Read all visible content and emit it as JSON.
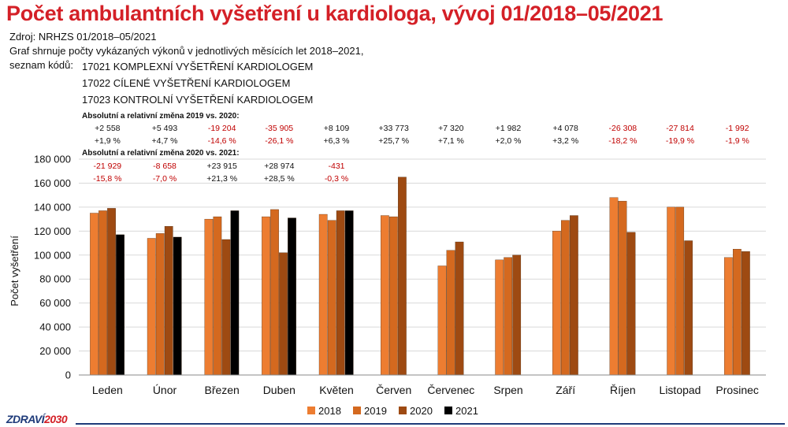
{
  "header": {
    "title": "Počet ambulantních vyšetření u kardiologa, vývoj 01/2018–05/2021",
    "source": "Zdroj: NRHZS 01/2018–05/2021",
    "description": "Graf shrnuje počty vykázaných výkonů v jednotlivých měsících let 2018–2021,",
    "codes_label": "seznam kódů:",
    "codes": [
      "17021 KOMPLEXNÍ VYŠETŘENÍ KARDIOLOGEM",
      "17022 CÍLENÉ VYŠETŘENÍ KARDIOLOGEM",
      "17023 KONTROLNÍ VYŠETŘENÍ KARDIOLOGEM"
    ]
  },
  "logo": {
    "text": "ZDRAVÍ",
    "number": "2030"
  },
  "colors": {
    "title": "#d42027",
    "negative": "#c00000",
    "positive": "#111111",
    "logo_blue": "#1f3b7a"
  },
  "chart_data": {
    "type": "bar",
    "ylabel": "Počet vyšetření",
    "ylim": [
      0,
      180000
    ],
    "yticks": [
      0,
      20000,
      40000,
      60000,
      80000,
      100000,
      120000,
      140000,
      160000,
      180000
    ],
    "ytick_labels": [
      "0",
      "20 000",
      "40 000",
      "60 000",
      "80 000",
      "100 000",
      "120 000",
      "140 000",
      "160 000",
      "180 000"
    ],
    "grid": true,
    "legend": "bottom-center",
    "categories": [
      "Leden",
      "Únor",
      "Březen",
      "Duben",
      "Květen",
      "Červen",
      "Červenec",
      "Srpen",
      "Září",
      "Říjen",
      "Listopad",
      "Prosinec"
    ],
    "series": [
      {
        "name": "2018",
        "color": "#ed7d31",
        "values": [
          135000,
          114000,
          130000,
          132000,
          134000,
          133000,
          91000,
          96000,
          120000,
          148000,
          140000,
          98000
        ]
      },
      {
        "name": "2019",
        "color": "#d4691f",
        "values": [
          137000,
          118000,
          132000,
          138000,
          129000,
          132000,
          104000,
          98000,
          129000,
          145000,
          140000,
          105000
        ]
      },
      {
        "name": "2020",
        "color": "#9e4a12",
        "values": [
          139000,
          124000,
          113000,
          102000,
          137000,
          165000,
          111000,
          100000,
          133000,
          119000,
          112000,
          103000
        ]
      },
      {
        "name": "2021",
        "color": "#000000",
        "values": [
          117000,
          115000,
          137000,
          131000,
          137000,
          null,
          null,
          null,
          null,
          null,
          null,
          null
        ]
      }
    ],
    "annotations": {
      "change_2019_2020": {
        "title": "Absolutní a relativní změna 2019 vs. 2020:",
        "absolute": [
          "+2 558",
          "+5 493",
          "-19 204",
          "-35 905",
          "+8 109",
          "+33 773",
          "+7 320",
          "+1 982",
          "+4 078",
          "-26 308",
          "-27 814",
          "-1 992"
        ],
        "relative": [
          "+1,9 %",
          "+4,7 %",
          "-14,6 %",
          "-26,1 %",
          "+6,3 %",
          "+25,7 %",
          "+7,1 %",
          "+2,0 %",
          "+3,2 %",
          "-18,2 %",
          "-19,9 %",
          "-1,9 %"
        ]
      },
      "change_2020_2021": {
        "title": "Absolutní a relativní změna 2020 vs. 2021:",
        "absolute": [
          "-21 929",
          "-8 658",
          "+23 915",
          "+28 974",
          "-431"
        ],
        "relative": [
          "-15,8 %",
          "-7,0 %",
          "+21,3 %",
          "+28,5 %",
          "-0,3 %"
        ]
      }
    }
  }
}
